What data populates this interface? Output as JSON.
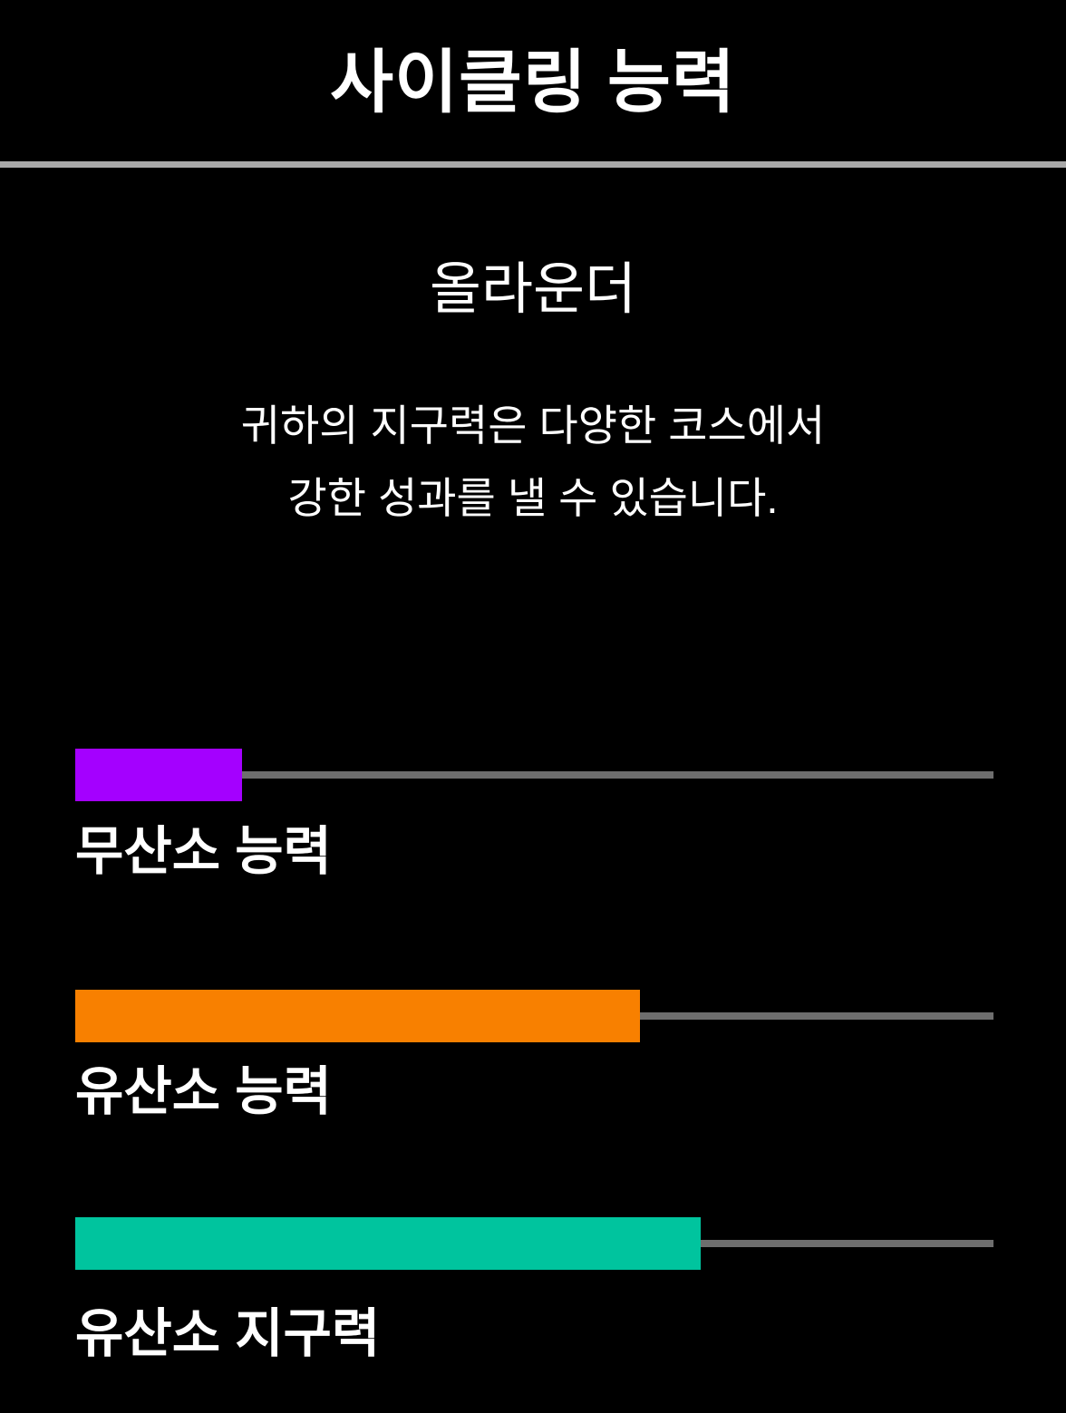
{
  "page": {
    "background_color": "#000000",
    "title": "사이클링 능력",
    "divider_color": "#A9A9A9",
    "subtitle": "올라운더",
    "description_lines": [
      "귀하의 지구력은 다양한 코스에서",
      "강한 성과를 낼 수 있습니다."
    ]
  },
  "chart_data": {
    "type": "bar",
    "orientation": "horizontal",
    "title": "사이클링 능력",
    "categories": [
      "무산소 능력",
      "유산소 능력",
      "유산소 지구력"
    ],
    "values": [
      18.2,
      61.5,
      68.1
    ],
    "xlim": [
      0,
      100
    ],
    "value_unit": "percent of track length (estimated from pixels, no numeric labels shown)",
    "colors": [
      "#A400FF",
      "#F88000",
      "#00C49E"
    ],
    "track_color": "#6E6E6E",
    "grid": false,
    "legend": false,
    "text_color": "#FFFFFF"
  }
}
